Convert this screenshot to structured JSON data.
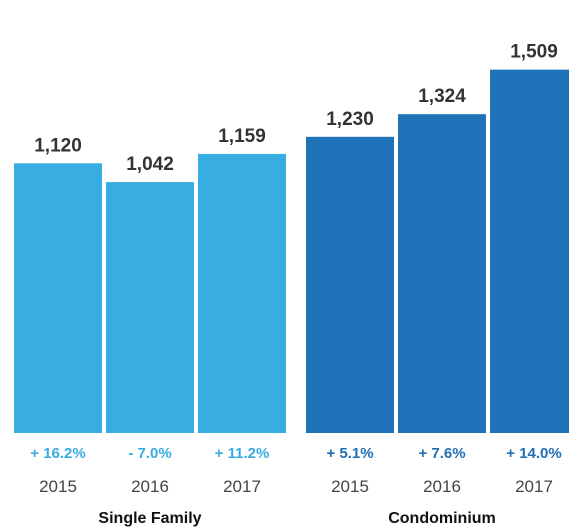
{
  "chart_data": {
    "type": "bar",
    "title": "",
    "xlabel": "",
    "ylabel": "",
    "ylim": [
      0,
      1600
    ],
    "groups": [
      {
        "name": "Single Family",
        "color": "#38ade2",
        "change_color": "#38ade2",
        "bars": [
          {
            "year": "2015",
            "value": 1120,
            "value_label": "1,120",
            "change": "+ 16.2%"
          },
          {
            "year": "2016",
            "value": 1042,
            "value_label": "1,042",
            "change": "- 7.0%"
          },
          {
            "year": "2017",
            "value": 1159,
            "value_label": "1,159",
            "change": "+ 11.2%"
          }
        ]
      },
      {
        "name": "Condominium",
        "color": "#1f73b8",
        "change_color": "#1f6fb4",
        "bars": [
          {
            "year": "2015",
            "value": 1230,
            "value_label": "1,230",
            "change": "+ 5.1%"
          },
          {
            "year": "2016",
            "value": 1324,
            "value_label": "1,324",
            "change": "+ 7.6%"
          },
          {
            "year": "2017",
            "value": 1509,
            "value_label": "1,509",
            "change": "+ 14.0%"
          }
        ]
      }
    ],
    "legend": "none",
    "grid": false
  }
}
